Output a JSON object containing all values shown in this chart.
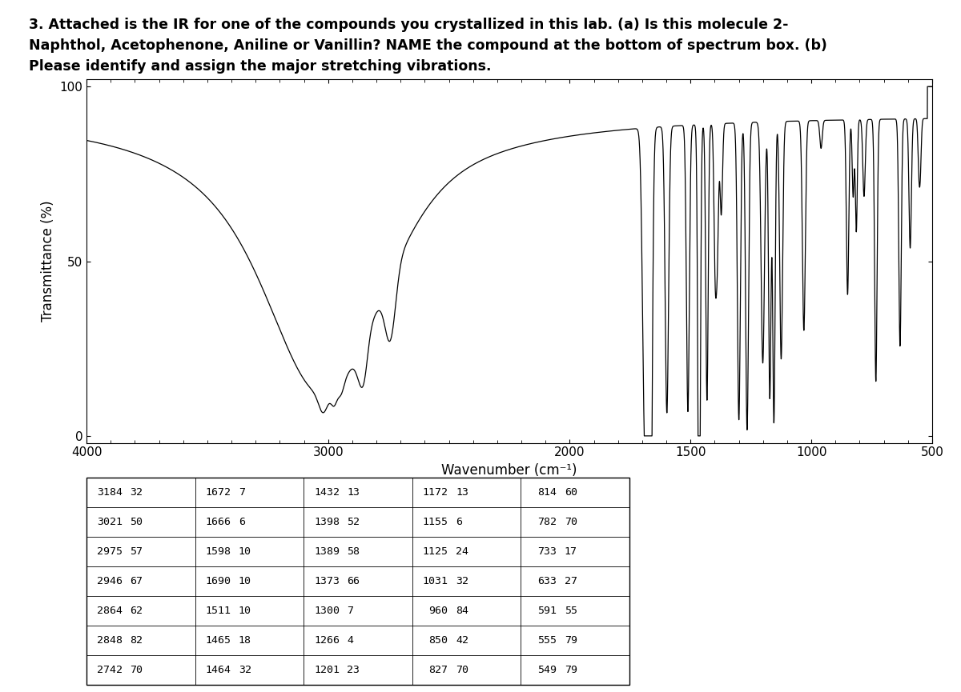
{
  "title_line1": "3. Attached is the IR for one of the compounds you crystallized in this lab. (a) Is this molecule 2-",
  "title_line2": "Naphthol, Acetophenone, Aniline or Vanillin? NAME the compound at the bottom of spectrum box. (b)",
  "title_line3": "Please identify and assign the major stretching vibrations.",
  "ylabel": "Transmittance (%)",
  "xlabel": "Wavenumber (cm⁻¹)",
  "xlim": [
    4000,
    500
  ],
  "ylim": [
    -2,
    102
  ],
  "yticks": [
    0,
    50,
    100
  ],
  "xticks": [
    4000,
    3000,
    2000,
    1500,
    1000,
    500
  ],
  "baseline": 92,
  "table_data": [
    [
      "3184",
      "32",
      "1672",
      "7",
      "1432",
      "13",
      "1172",
      "13",
      "814",
      "60"
    ],
    [
      "3021",
      "50",
      "1666",
      "6",
      "1398",
      "52",
      "1155",
      "6",
      "782",
      "70"
    ],
    [
      "2975",
      "57",
      "1598",
      "10",
      "1389",
      "58",
      "1125",
      "24",
      "733",
      "17"
    ],
    [
      "2946",
      "67",
      "1690",
      "10",
      "1373",
      "66",
      "1031",
      "32",
      "633",
      "27"
    ],
    [
      "2864",
      "62",
      "1511",
      "10",
      "1300",
      "7",
      "960",
      "84",
      "591",
      "55"
    ],
    [
      "2848",
      "82",
      "1465",
      "18",
      "1266",
      "4",
      "850",
      "42",
      "555",
      "79"
    ],
    [
      "2742",
      "70",
      "1464",
      "32",
      "1201",
      "23",
      "827",
      "70",
      "549",
      "79"
    ]
  ]
}
